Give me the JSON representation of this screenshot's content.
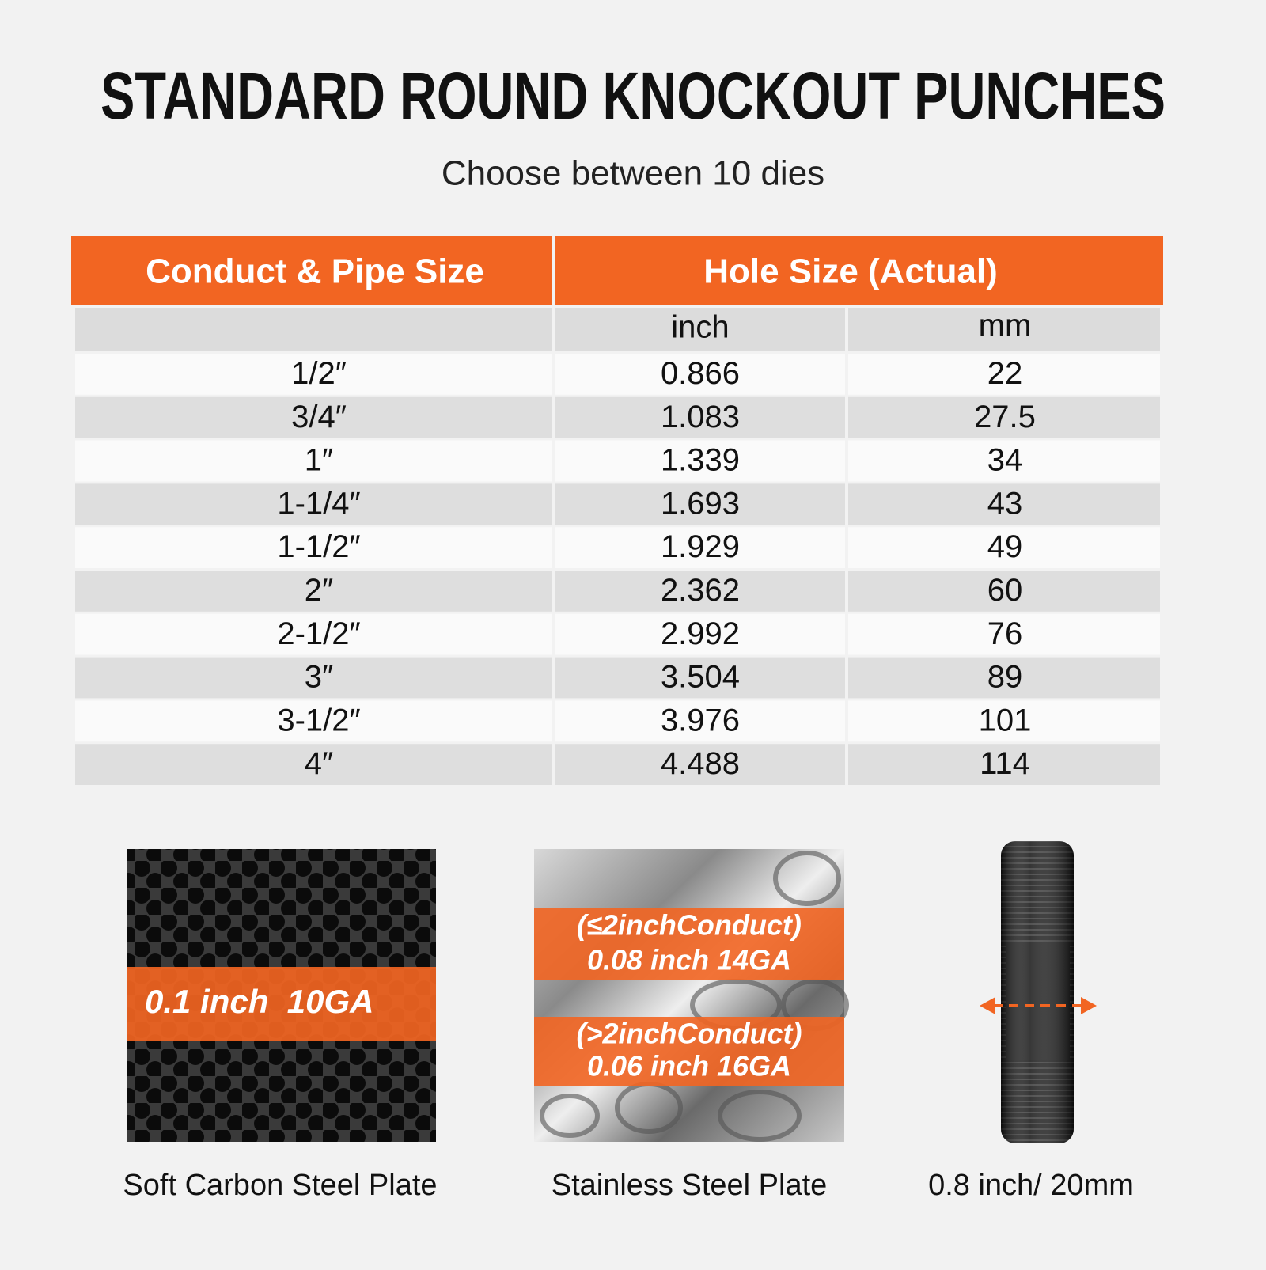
{
  "header": {
    "title": "STANDARD ROUND KNOCKOUT PUNCHES",
    "subtitle": "Choose between 10 dies"
  },
  "table": {
    "headers": [
      "Conduct & Pipe Size",
      "Hole Size (Actual)"
    ],
    "subheaders": [
      "inch",
      "mm"
    ],
    "rows": [
      [
        "1/2″",
        "0.866",
        "22"
      ],
      [
        "3/4″",
        "1.083",
        "27.5"
      ],
      [
        "1″",
        "1.339",
        "34"
      ],
      [
        "1-1/4″",
        "1.693",
        "43"
      ],
      [
        "1-1/2″",
        "1.929",
        "49"
      ],
      [
        "2″",
        "2.362",
        "60"
      ],
      [
        "2-1/2″",
        "2.992",
        "76"
      ],
      [
        "3″",
        "3.504",
        "89"
      ],
      [
        "3-1/2″",
        "3.976",
        "101"
      ],
      [
        "4″",
        "4.488",
        "114"
      ]
    ]
  },
  "panels": [
    {
      "caption": "Soft Carbon Steel Plate",
      "labels": [
        "0.1 inch  10GA"
      ]
    },
    {
      "caption": "Stainless Steel Plate",
      "labels": [
        "(≤2inchConduct)",
        "0.08 inch 14GA",
        "(>2inchConduct)",
        "0.06 inch 16GA"
      ]
    },
    {
      "caption": "0.8 inch/ 20mm"
    }
  ]
}
